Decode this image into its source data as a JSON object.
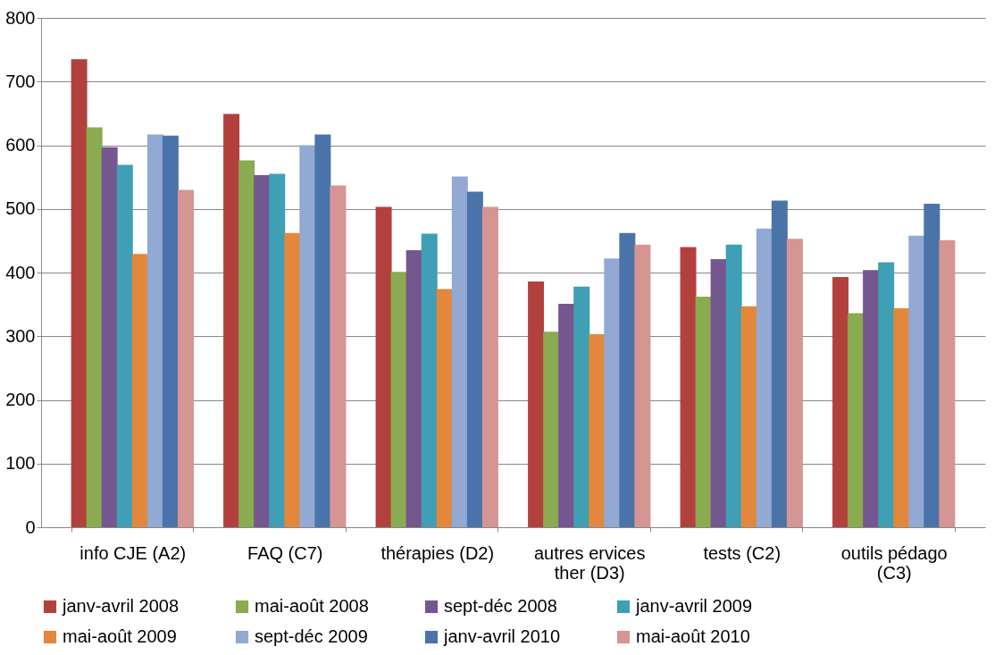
{
  "chart_data": {
    "type": "bar",
    "categories": [
      "info CJE (A2)",
      "FAQ (C7)",
      "thérapies (D2)",
      "autres ervices ther (D3)",
      "tests (C2)",
      "outils pédago (C3)"
    ],
    "series": [
      {
        "name": "janv-avril 2008",
        "color": "#b2413e",
        "values": [
          735,
          649,
          503,
          386,
          440,
          393
        ]
      },
      {
        "name": "mai-août 2008",
        "color": "#8aab4f",
        "values": [
          628,
          576,
          401,
          307,
          362,
          336
        ]
      },
      {
        "name": "sept-déc 2008",
        "color": "#74578f",
        "values": [
          597,
          553,
          435,
          351,
          421,
          404
        ]
      },
      {
        "name": "janv-avril 2009",
        "color": "#3f9fb4",
        "values": [
          569,
          555,
          461,
          378,
          444,
          416
        ]
      },
      {
        "name": "mai-août 2009",
        "color": "#e2873b",
        "values": [
          429,
          462,
          374,
          303,
          347,
          344
        ]
      },
      {
        "name": "sept-déc 2009",
        "color": "#92a9d3",
        "values": [
          617,
          600,
          551,
          422,
          469,
          458
        ]
      },
      {
        "name": "janv-avril 2010",
        "color": "#4a74a9",
        "values": [
          615,
          617,
          527,
          462,
          513,
          508
        ]
      },
      {
        "name": "mai-août 2010",
        "color": "#d59593",
        "values": [
          530,
          537,
          503,
          444,
          453,
          451
        ]
      }
    ],
    "ylim": [
      0,
      800
    ],
    "yticks": [
      0,
      100,
      200,
      300,
      400,
      500,
      600,
      700,
      800
    ],
    "grid": "y",
    "legend": "bottom"
  }
}
